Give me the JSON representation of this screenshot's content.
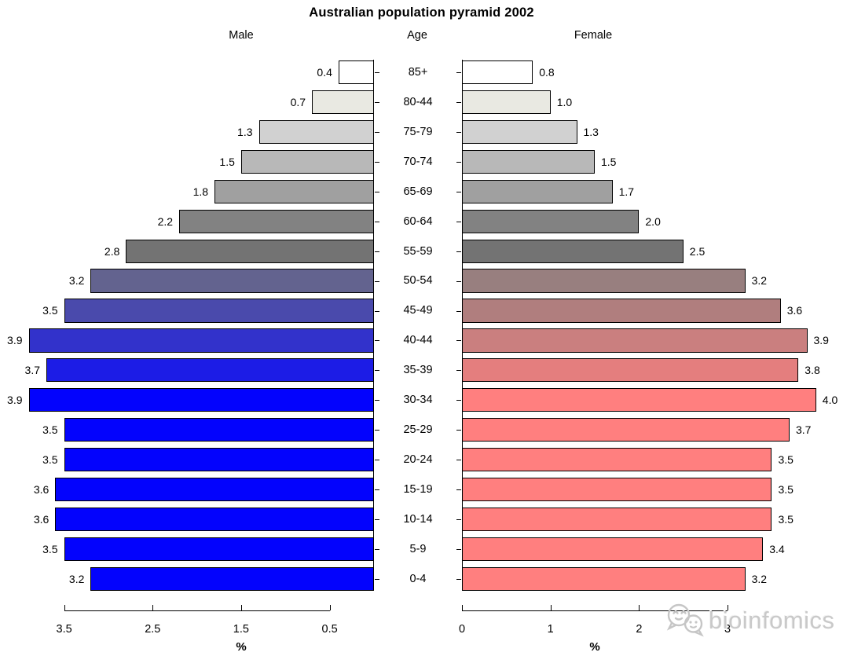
{
  "title": "Australian population pyramid 2002",
  "headers": {
    "male": "Male",
    "age": "Age",
    "female": "Female"
  },
  "watermark": {
    "text": "bioinfomics",
    "icon": "chat-bubbles-logo",
    "color": "#c9c9c9"
  },
  "chart_data": {
    "type": "bar",
    "subtype": "population-pyramid",
    "title": "Australian population pyramid 2002",
    "categories": [
      "85+",
      "80-44",
      "75-79",
      "70-74",
      "65-69",
      "60-64",
      "55-59",
      "50-54",
      "45-49",
      "40-44",
      "35-39",
      "30-34",
      "25-29",
      "20-24",
      "15-19",
      "10-14",
      "5-9",
      "0-4"
    ],
    "series": [
      {
        "name": "Male",
        "side": "left",
        "values": [
          0.4,
          0.7,
          1.3,
          1.5,
          1.8,
          2.2,
          2.8,
          3.2,
          3.5,
          3.9,
          3.7,
          3.9,
          3.5,
          3.5,
          3.6,
          3.6,
          3.5,
          3.2
        ],
        "labels": [
          "0.4",
          "0.7",
          "1.3",
          "1.5",
          "1.8",
          "2.2",
          "2.8",
          "3.2",
          "3.5",
          "3.9",
          "3.7",
          "3.9",
          "3.5",
          "3.5",
          "3.6",
          "3.6",
          "3.5",
          "3.2"
        ]
      },
      {
        "name": "Female",
        "side": "right",
        "values": [
          0.8,
          1.0,
          1.3,
          1.5,
          1.7,
          2.0,
          2.5,
          3.2,
          3.6,
          3.9,
          3.8,
          4.0,
          3.7,
          3.5,
          3.5,
          3.5,
          3.4,
          3.2
        ],
        "labels": [
          "0.8",
          "1.0",
          "1.3",
          "1.5",
          "1.7",
          "2.0",
          "2.5",
          "3.2",
          "3.6",
          "3.9",
          "3.8",
          "4.0",
          "3.7",
          "3.5",
          "3.5",
          "3.5",
          "3.4",
          "3.2"
        ]
      }
    ],
    "bar_colors": {
      "male": [
        "#ffffff",
        "#e9e9e2",
        "#d1d1d1",
        "#b8b8b8",
        "#a0a0a0",
        "#828282",
        "#737373",
        "#63638f",
        "#4a4aac",
        "#3232cb",
        "#1c1ce6",
        "#0303fd",
        "#0303fd",
        "#0303fd",
        "#0303fd",
        "#0303fd",
        "#0303fd",
        "#0303fd"
      ],
      "female": [
        "#ffffff",
        "#e9e9e2",
        "#d1d1d1",
        "#b8b8b8",
        "#a0a0a0",
        "#828282",
        "#737373",
        "#987f7f",
        "#b07e7e",
        "#ca7f7f",
        "#e47e7e",
        "#ff7f7f",
        "#ff7f7f",
        "#ff7f7f",
        "#ff7f7f",
        "#ff7f7f",
        "#ff7f7f",
        "#ff7f7f"
      ]
    },
    "x_axis": {
      "label": "%",
      "male_tick_labels": [
        "3.5",
        "2.5",
        "1.5",
        "0.5"
      ],
      "male_tick_values": [
        3.5,
        2.5,
        1.5,
        0.5
      ],
      "female_tick_labels": [
        "0",
        "1",
        "2",
        "3"
      ],
      "female_tick_values": [
        0,
        1,
        2,
        3
      ],
      "male_range": [
        3,
        0
      ],
      "female_range": [
        0,
        3
      ]
    },
    "value_labels_shown": true,
    "grid": false,
    "legend": "none"
  }
}
